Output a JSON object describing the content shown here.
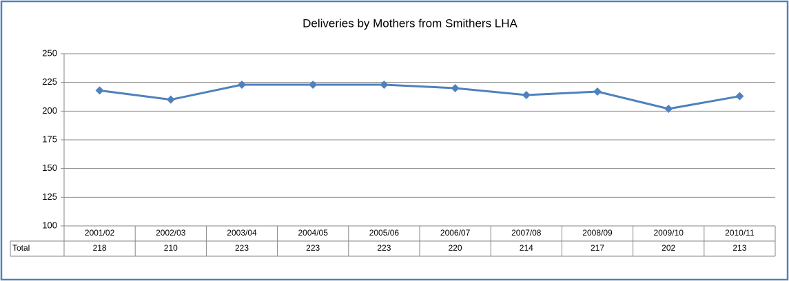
{
  "chart_data": {
    "type": "line",
    "title": "Deliveries by Mothers from Smithers LHA",
    "categories": [
      "2001/02",
      "2002/03",
      "2003/04",
      "2004/05",
      "2005/06",
      "2006/07",
      "2007/08",
      "2008/09",
      "2009/10",
      "2010/11"
    ],
    "series": [
      {
        "name": "Total",
        "color": "#4f81bd",
        "values": [
          218,
          210,
          223,
          223,
          223,
          220,
          214,
          217,
          202,
          213
        ]
      }
    ],
    "ylim": [
      100,
      250
    ],
    "yticks": [
      100,
      125,
      150,
      175,
      200,
      225,
      250
    ],
    "grid": true
  }
}
